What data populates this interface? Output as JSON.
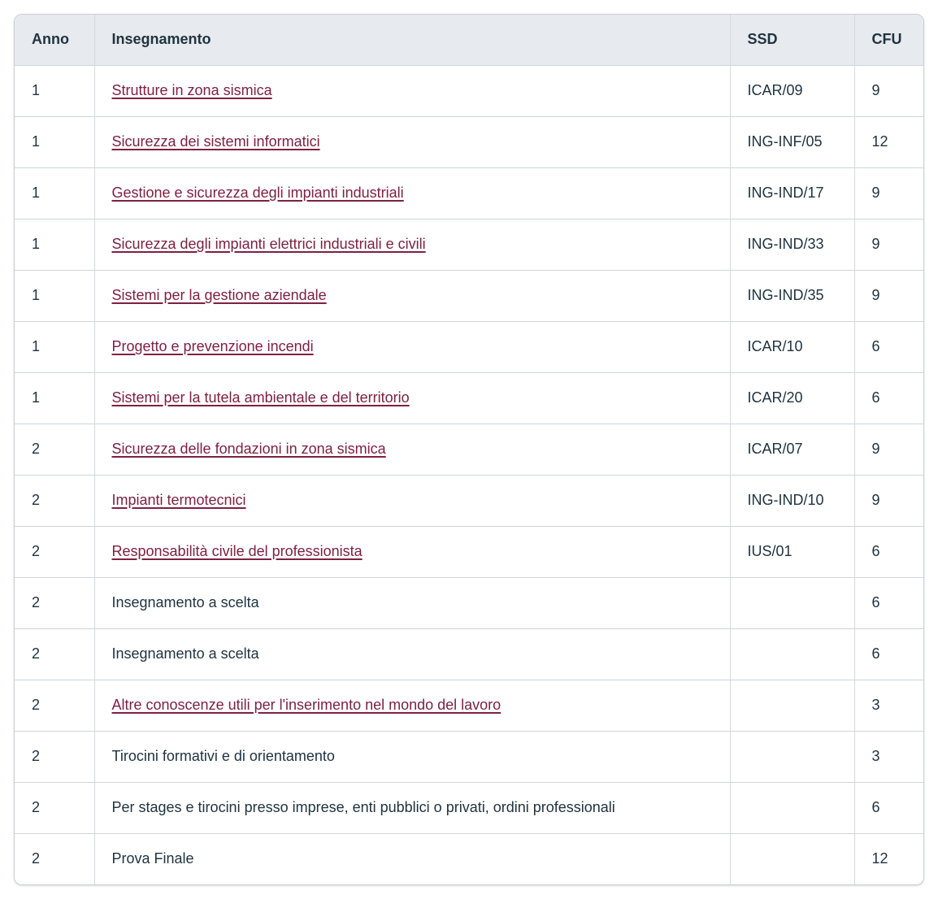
{
  "colors": {
    "link": "#7d2141",
    "text": "#203440",
    "header_bg": "#e7eaee",
    "border_outer": "#c8d1d7",
    "border_row": "#ccd6dc",
    "border_col": "#d3dadf"
  },
  "table": {
    "columns": [
      {
        "key": "anno",
        "label": "Anno"
      },
      {
        "key": "insegnamento",
        "label": "Insegnamento"
      },
      {
        "key": "ssd",
        "label": "SSD"
      },
      {
        "key": "cfu",
        "label": "CFU"
      }
    ],
    "rows": [
      {
        "anno": "1",
        "name": "Strutture in zona sismica",
        "link": true,
        "ssd": "ICAR/09",
        "cfu": "9"
      },
      {
        "anno": "1",
        "name": "Sicurezza dei sistemi informatici",
        "link": true,
        "ssd": "ING-INF/05",
        "cfu": "12"
      },
      {
        "anno": "1",
        "name": "Gestione e sicurezza degli impianti industriali",
        "link": true,
        "ssd": "ING-IND/17",
        "cfu": "9"
      },
      {
        "anno": "1",
        "name": "Sicurezza degli impianti elettrici industriali e civili",
        "link": true,
        "ssd": "ING-IND/33",
        "cfu": "9"
      },
      {
        "anno": "1",
        "name": "Sistemi per la gestione aziendale",
        "link": true,
        "ssd": "ING-IND/35",
        "cfu": "9"
      },
      {
        "anno": "1",
        "name": "Progetto e prevenzione incendi",
        "link": true,
        "ssd": "ICAR/10",
        "cfu": "6"
      },
      {
        "anno": "1",
        "name": "Sistemi per la tutela ambientale e del territorio",
        "link": true,
        "ssd": "ICAR/20",
        "cfu": "6"
      },
      {
        "anno": "2",
        "name": "Sicurezza delle fondazioni in zona sismica",
        "link": true,
        "ssd": "ICAR/07",
        "cfu": "9"
      },
      {
        "anno": "2",
        "name": "Impianti termotecnici",
        "link": true,
        "ssd": "ING-IND/10",
        "cfu": "9"
      },
      {
        "anno": "2",
        "name": "Responsabilità civile del professionista",
        "link": true,
        "ssd": "IUS/01",
        "cfu": "6"
      },
      {
        "anno": "2",
        "name": "Insegnamento a scelta",
        "link": false,
        "ssd": "",
        "cfu": "6"
      },
      {
        "anno": "2",
        "name": "Insegnamento a scelta",
        "link": false,
        "ssd": "",
        "cfu": "6"
      },
      {
        "anno": "2",
        "name": "Altre conoscenze utili per l'inserimento nel mondo del lavoro",
        "link": true,
        "ssd": "",
        "cfu": "3"
      },
      {
        "anno": "2",
        "name": "Tirocini formativi e di orientamento",
        "link": false,
        "ssd": "",
        "cfu": "3"
      },
      {
        "anno": "2",
        "name": "Per stages e tirocini presso imprese, enti pubblici o privati, ordini professionali",
        "link": false,
        "ssd": "",
        "cfu": "6"
      },
      {
        "anno": "2",
        "name": "Prova Finale",
        "link": false,
        "ssd": "",
        "cfu": "12"
      }
    ]
  }
}
